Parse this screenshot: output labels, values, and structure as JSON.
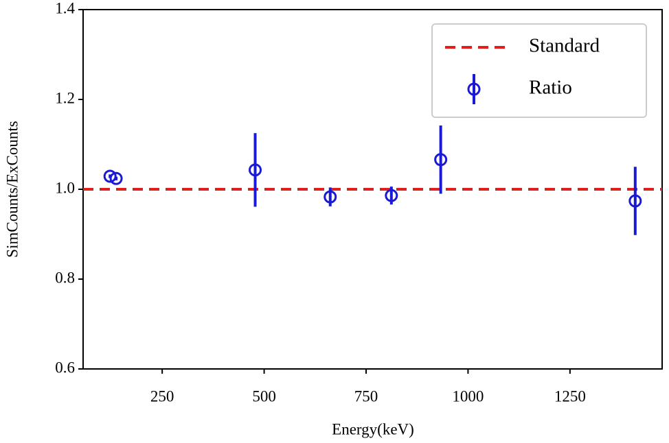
{
  "chart_data": {
    "type": "errorbar",
    "xlabel": "Energy(keV)",
    "ylabel": "SimCounts/ExCounts",
    "xlim": [
      56,
      1476
    ],
    "ylim": [
      0.6,
      1.4
    ],
    "xticks": [
      250,
      500,
      750,
      1000,
      1250
    ],
    "yticks": [
      0.6,
      0.8,
      {
        "value": 1,
        "label": "1.0"
      },
      1.2,
      1.4
    ],
    "reference_line": {
      "name": "Standard",
      "value": 1,
      "color": "#e01f1f"
    },
    "series": [
      {
        "name": "Ratio",
        "color": "#1a1ad6",
        "x": [
          122,
          137,
          478,
          662,
          812,
          933,
          1410
        ],
        "values": [
          1.029,
          1.024,
          1.043,
          0.983,
          0.986,
          1.066,
          0.974
        ],
        "errors": [
          0.004,
          0.004,
          0.082,
          0.021,
          0.02,
          0.076,
          0.076
        ]
      }
    ],
    "legend": "upper right"
  }
}
